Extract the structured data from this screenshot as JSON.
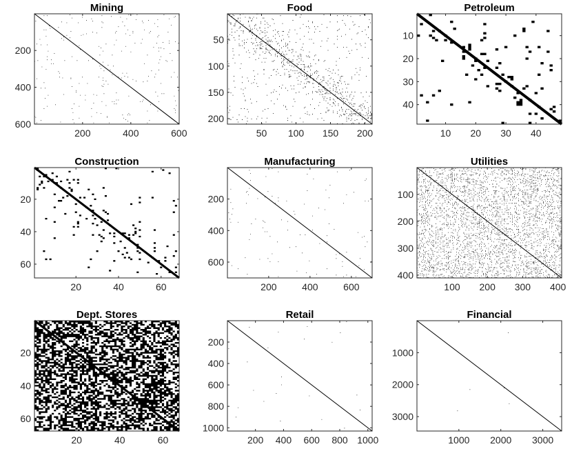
{
  "chart_data": [
    {
      "type": "heatmap",
      "subtype": "sparsity-pattern",
      "title": "Mining",
      "n": 600,
      "xticks": [
        200,
        400,
        600
      ],
      "yticks": [
        200,
        400,
        600
      ],
      "density": 0.012,
      "band_density": 0.0
    },
    {
      "type": "heatmap",
      "subtype": "sparsity-pattern",
      "title": "Food",
      "n": 210,
      "xticks": [
        50,
        100,
        150,
        200
      ],
      "yticks": [
        50,
        100,
        150,
        200
      ],
      "density": 0.02,
      "band_density": 0.12
    },
    {
      "type": "heatmap",
      "subtype": "sparsity-pattern",
      "title": "Petroleum",
      "n": 48,
      "xticks": [
        10,
        20,
        30,
        40
      ],
      "yticks": [
        10,
        20,
        30,
        40
      ],
      "density": 0.02,
      "band_density": 0.1
    },
    {
      "type": "heatmap",
      "subtype": "sparsity-pattern",
      "title": "Construction",
      "n": 68,
      "xticks": [
        20,
        40,
        60
      ],
      "yticks": [
        20,
        40,
        60
      ],
      "density": 0.015,
      "band_density": 0.06
    },
    {
      "type": "heatmap",
      "subtype": "sparsity-pattern",
      "title": "Manufacturing",
      "n": 700,
      "xticks": [
        200,
        400,
        600
      ],
      "yticks": [
        200,
        400,
        600
      ],
      "density": 0.006,
      "band_density": 0.0
    },
    {
      "type": "heatmap",
      "subtype": "sparsity-pattern",
      "title": "Utilities",
      "n": 410,
      "xticks": [
        100,
        200,
        300,
        400
      ],
      "yticks": [
        100,
        200,
        300,
        400
      ],
      "density": 0.18,
      "band_density": 0.0
    },
    {
      "type": "heatmap",
      "subtype": "sparsity-pattern",
      "title": "Dept. Stores",
      "n": 67,
      "xticks": [
        20,
        40,
        60
      ],
      "yticks": [
        20,
        40,
        60
      ],
      "density": 0.55,
      "band_density": 0.0
    },
    {
      "type": "heatmap",
      "subtype": "sparsity-pattern",
      "title": "Retail",
      "n": 1030,
      "xticks": [
        200,
        400,
        600,
        800,
        1000
      ],
      "yticks": [
        200,
        400,
        600,
        800,
        1000
      ],
      "density": 0.0012,
      "band_density": 0.0
    },
    {
      "type": "heatmap",
      "subtype": "sparsity-pattern",
      "title": "Financial",
      "n": 3450,
      "xticks": [
        1000,
        2000,
        3000
      ],
      "yticks": [
        1000,
        2000,
        3000
      ],
      "density": 0.0004,
      "band_density": 0.0
    }
  ]
}
